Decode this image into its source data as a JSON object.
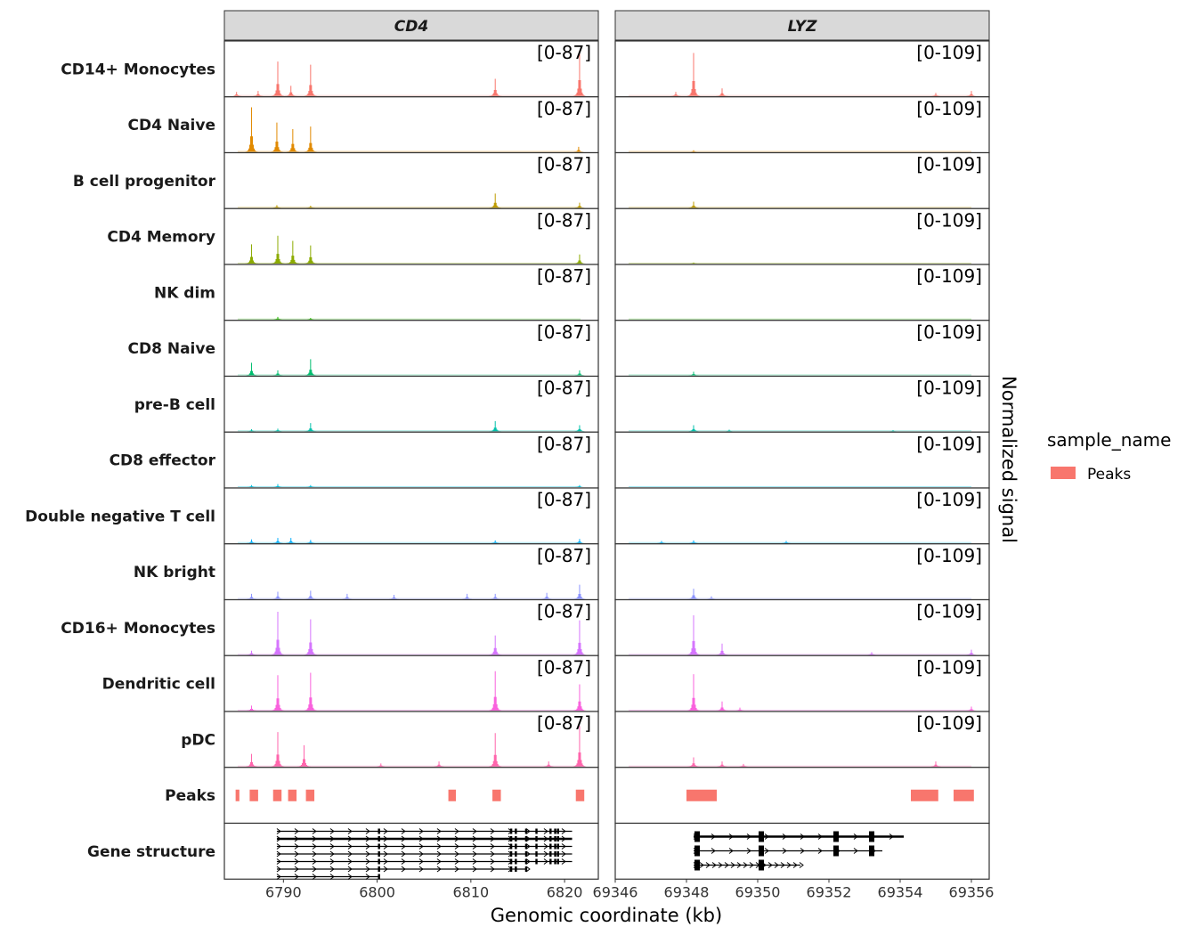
{
  "chart_data": {
    "type": "coverage-tracks",
    "xlabel": "Genomic coordinate (kb)",
    "ylabel": "Normalized signal",
    "legend": {
      "title": "sample_name",
      "entries": [
        {
          "label": "Peaks",
          "color": "#F8766D"
        }
      ],
      "placement": "right"
    },
    "panels": [
      {
        "gene": "CD4",
        "range_label": "[0-87]",
        "ymax": 87,
        "xlim": [
          6783.7,
          6823.6
        ],
        "ticks": [
          6790,
          6800,
          6810,
          6820
        ]
      },
      {
        "gene": "LYZ",
        "range_label": "[0-109]",
        "ymax": 109,
        "xlim": [
          69346,
          69356.5
        ],
        "ticks": [
          69346,
          69348,
          69350,
          69352,
          69354,
          69356
        ]
      }
    ],
    "tracks": [
      {
        "name": "CD14+ Monocytes",
        "color": "#F8766D",
        "peaks": [
          [
            [
              6785,
              0.08
            ],
            [
              6787.3,
              0.1
            ],
            [
              6789.4,
              0.68
            ],
            [
              6790.8,
              0.2
            ],
            [
              6792.9,
              0.62
            ],
            [
              6812.6,
              0.34
            ],
            [
              6821.6,
              0.9
            ]
          ],
          [
            [
              69347.7,
              0.08
            ],
            [
              69348.2,
              0.85
            ],
            [
              69349,
              0.15
            ],
            [
              69355,
              0.06
            ],
            [
              69356,
              0.1
            ]
          ]
        ]
      },
      {
        "name": "CD4 Naive",
        "color": "#E18A00",
        "peaks": [
          [
            [
              6786.6,
              0.88
            ],
            [
              6789.3,
              0.58
            ],
            [
              6791,
              0.45
            ],
            [
              6792.9,
              0.5
            ],
            [
              6821.5,
              0.1
            ]
          ],
          [
            [
              69348.2,
              0.03
            ]
          ]
        ]
      },
      {
        "name": "B cell progenitor",
        "color": "#BE9C00",
        "peaks": [
          [
            [
              6789.3,
              0.05
            ],
            [
              6792.9,
              0.04
            ],
            [
              6812.6,
              0.28
            ],
            [
              6821.6,
              0.1
            ]
          ],
          [
            [
              69348.2,
              0.12
            ]
          ]
        ]
      },
      {
        "name": "CD4 Memory",
        "color": "#8CAB00",
        "peaks": [
          [
            [
              6786.6,
              0.38
            ],
            [
              6789.4,
              0.55
            ],
            [
              6791,
              0.45
            ],
            [
              6792.9,
              0.36
            ],
            [
              6821.6,
              0.18
            ]
          ],
          [
            [
              69348.2,
              0.02
            ]
          ]
        ]
      },
      {
        "name": "NK dim",
        "color": "#24B700",
        "peaks": [
          [
            [
              6789.4,
              0.05
            ],
            [
              6792.9,
              0.03
            ]
          ],
          []
        ]
      },
      {
        "name": "CD8 Naive",
        "color": "#00BE70",
        "peaks": [
          [
            [
              6786.6,
              0.25
            ],
            [
              6789.4,
              0.1
            ],
            [
              6792.9,
              0.32
            ],
            [
              6821.6,
              0.1
            ]
          ],
          [
            [
              69348.2,
              0.07
            ]
          ]
        ]
      },
      {
        "name": "pre-B cell",
        "color": "#00C1AB",
        "peaks": [
          [
            [
              6786.6,
              0.04
            ],
            [
              6789.4,
              0.05
            ],
            [
              6792.9,
              0.16
            ],
            [
              6812.6,
              0.2
            ],
            [
              6821.6,
              0.12
            ]
          ],
          [
            [
              69348.2,
              0.12
            ],
            [
              69349.2,
              0.03
            ],
            [
              69353.8,
              0.02
            ]
          ]
        ]
      },
      {
        "name": "CD8 effector",
        "color": "#00BBDA",
        "peaks": [
          [
            [
              6786.6,
              0.04
            ],
            [
              6789.4,
              0.06
            ],
            [
              6792.9,
              0.04
            ],
            [
              6821.6,
              0.04
            ]
          ],
          []
        ]
      },
      {
        "name": "Double negative T cell",
        "color": "#00ACFC",
        "peaks": [
          [
            [
              6786.6,
              0.07
            ],
            [
              6789.4,
              0.1
            ],
            [
              6790.8,
              0.1
            ],
            [
              6792.9,
              0.06
            ],
            [
              6812.6,
              0.05
            ],
            [
              6821.6,
              0.08
            ]
          ],
          [
            [
              69347.3,
              0.04
            ],
            [
              69348.2,
              0.05
            ],
            [
              69350.8,
              0.04
            ]
          ]
        ]
      },
      {
        "name": "NK bright",
        "color": "#8B93FF",
        "peaks": [
          [
            [
              6786.6,
              0.1
            ],
            [
              6789.4,
              0.14
            ],
            [
              6792.9,
              0.16
            ],
            [
              6796.8,
              0.1
            ],
            [
              6801.8,
              0.08
            ],
            [
              6809.6,
              0.1
            ],
            [
              6812.6,
              0.1
            ],
            [
              6818.1,
              0.12
            ],
            [
              6821.6,
              0.28
            ]
          ],
          [
            [
              69348.2,
              0.2
            ],
            [
              69348.7,
              0.05
            ]
          ]
        ]
      },
      {
        "name": "CD16+ Monocytes",
        "color": "#D575FE",
        "peaks": [
          [
            [
              6786.6,
              0.08
            ],
            [
              6789.4,
              0.85
            ],
            [
              6792.9,
              0.7
            ],
            [
              6812.6,
              0.38
            ],
            [
              6821.6,
              0.68
            ]
          ],
          [
            [
              69348.2,
              0.78
            ],
            [
              69349,
              0.22
            ],
            [
              69353.2,
              0.05
            ],
            [
              69356,
              0.1
            ]
          ]
        ]
      },
      {
        "name": "Dendritic cell",
        "color": "#F962DD",
        "peaks": [
          [
            [
              6786.6,
              0.1
            ],
            [
              6789.4,
              0.7
            ],
            [
              6792.9,
              0.75
            ],
            [
              6812.6,
              0.78
            ],
            [
              6821.6,
              0.52
            ]
          ],
          [
            [
              69348.2,
              0.72
            ],
            [
              69349,
              0.18
            ],
            [
              69349.5,
              0.06
            ],
            [
              69356,
              0.08
            ]
          ]
        ]
      },
      {
        "name": "pDC",
        "color": "#FF65AC",
        "peaks": [
          [
            [
              6786.6,
              0.25
            ],
            [
              6789.4,
              0.68
            ],
            [
              6792.2,
              0.42
            ],
            [
              6800.4,
              0.06
            ],
            [
              6806.6,
              0.1
            ],
            [
              6812.6,
              0.66
            ],
            [
              6818.3,
              0.1
            ],
            [
              6821.6,
              0.8
            ]
          ],
          [
            [
              69348.2,
              0.18
            ],
            [
              69349,
              0.1
            ],
            [
              69349.6,
              0.05
            ],
            [
              69355,
              0.1
            ]
          ]
        ]
      }
    ],
    "peaks_track": {
      "name": "Peaks",
      "color": "#F8766D",
      "regions": [
        [
          [
            6784.9,
            6785.3
          ],
          [
            6786.4,
            6787.3
          ],
          [
            6788.9,
            6789.8
          ],
          [
            6790.5,
            6791.4
          ],
          [
            6792.4,
            6793.3
          ],
          [
            6807.6,
            6808.4
          ],
          [
            6812.3,
            6813.2
          ],
          [
            6821.2,
            6822.1
          ]
        ],
        [
          [
            69348.0,
            69348.85
          ],
          [
            69354.3,
            69355.07
          ],
          [
            69355.5,
            69356.07
          ]
        ]
      ]
    },
    "gene_track": {
      "name": "Gene structure",
      "transcripts": [
        [
          [
            6789.3,
            6820.8
          ],
          [
            6789.3,
            6820.8
          ],
          [
            6789.3,
            6820.8
          ],
          [
            6789.3,
            6820.8
          ],
          [
            6789.3,
            6820.8
          ],
          [
            6789.3,
            6816.0
          ],
          [
            6789.3,
            6800.2
          ]
        ],
        [
          [
            69348.2,
            69354.1
          ],
          [
            69348.2,
            69353.5
          ],
          [
            69348.2,
            69351.2
          ]
        ]
      ],
      "exons": [
        [
          6800.2,
          6814.3,
          6814.8,
          6815.9,
          6817.0,
          6818.5,
          6819.0,
          6819.3
        ],
        [
          69348.3,
          69350.1,
          69352.2,
          69353.2
        ]
      ]
    }
  }
}
